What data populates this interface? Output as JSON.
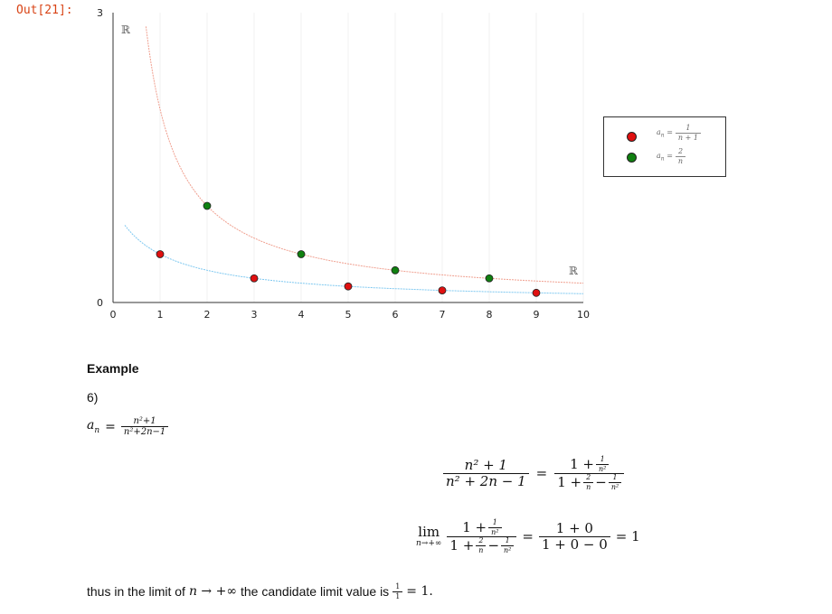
{
  "prompt": "Out[21]:",
  "chart_data": {
    "type": "scatter",
    "xlim": [
      0,
      10
    ],
    "ylim": [
      0,
      3
    ],
    "x_ticks": [
      "0",
      "1",
      "2",
      "3",
      "4",
      "5",
      "6",
      "7",
      "8",
      "9",
      "10"
    ],
    "y_ticks": [
      "0",
      "3"
    ],
    "xlabel": "ℝ",
    "ylabel": "ℝ",
    "grid": true,
    "legend_position": "right",
    "series": [
      {
        "name": "a_n = 1/(n+1)",
        "color": "#e01010",
        "points": [
          [
            1,
            0.5
          ],
          [
            3,
            0.25
          ],
          [
            5,
            0.1667
          ],
          [
            7,
            0.125
          ],
          [
            9,
            0.1
          ]
        ],
        "curve": "1/(x+1)",
        "curve_color": "#f0a090"
      },
      {
        "name": "a_n = 2/n",
        "color": "#108010",
        "points": [
          [
            2,
            1.0
          ],
          [
            4,
            0.5
          ],
          [
            6,
            0.3333
          ],
          [
            8,
            0.25
          ]
        ],
        "curve": "2/x",
        "curve_color": "#7ec8f0"
      }
    ]
  },
  "legend": {
    "items": [
      {
        "label_lhs": "a",
        "label_sub": "n",
        "num": "1",
        "den": "n + 1"
      },
      {
        "label_lhs": "a",
        "label_sub": "n",
        "num": "2",
        "den": "n"
      }
    ]
  },
  "example": {
    "title": "Example",
    "number": "6)",
    "seq_lhs": "a",
    "seq_sub": "n",
    "seq_num": "n²+1",
    "seq_den": "n²+2n−1",
    "eq1": {
      "num": "n² + 1",
      "den": "n² + 2n − 1",
      "rhs_num_a": "1 +",
      "rhs_num_frac_num": "1",
      "rhs_num_frac_den": "n²",
      "rhs_den_a": "1 +",
      "rhs_den_f1_num": "2",
      "rhs_den_f1_den": "n",
      "rhs_den_b": "−",
      "rhs_den_f2_num": "1",
      "rhs_den_f2_den": "n²"
    },
    "eq2": {
      "lim": "lim",
      "lim_sub": "n→+∞",
      "mid_num": "1 + 0",
      "mid_den": "1 + 0 − 0",
      "result": "= 1"
    },
    "conclusion_a": "thus in the limit of",
    "conclusion_var": "n → +∞",
    "conclusion_b": "the candidate limit value is",
    "conclusion_num": "1",
    "conclusion_den": "1",
    "conclusion_end": "= 1."
  }
}
